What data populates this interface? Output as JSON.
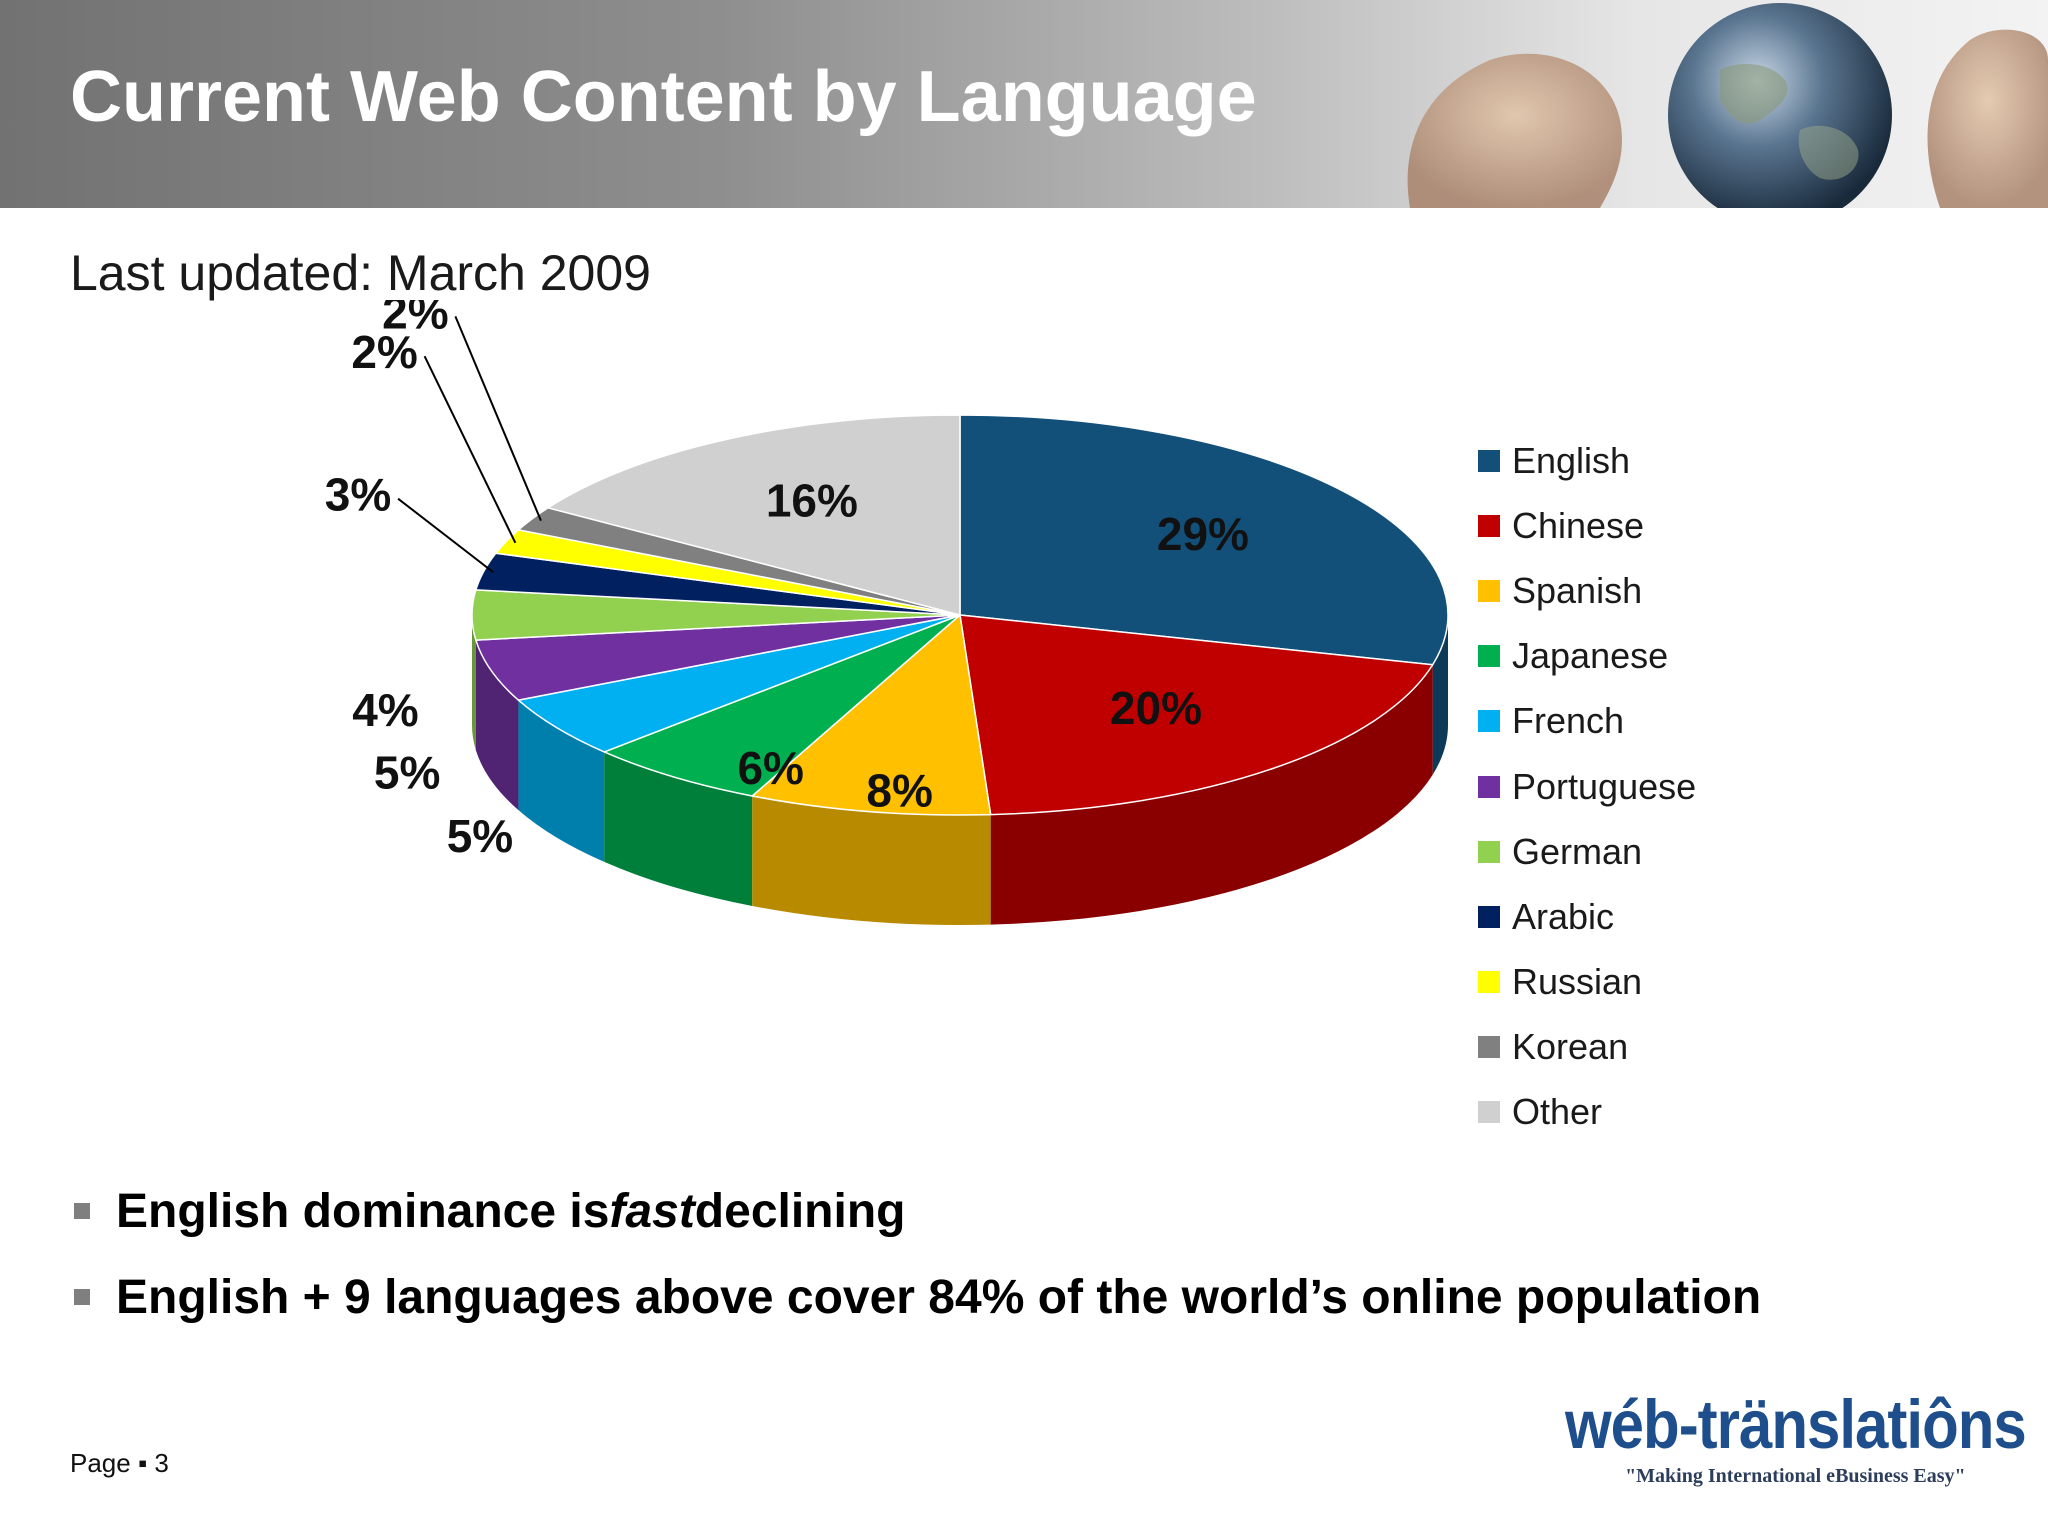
{
  "header": {
    "title": "Current Web Content by Language"
  },
  "subtitle": "Last updated: March 2009",
  "chart_data": {
    "type": "pie",
    "title": "",
    "categories": [
      "English",
      "Chinese",
      "Spanish",
      "Japanese",
      "French",
      "Portuguese",
      "German",
      "Arabic",
      "Russian",
      "Korean",
      "Other"
    ],
    "values": [
      29,
      20,
      8,
      6,
      5,
      5,
      4,
      3,
      2,
      2,
      16
    ],
    "labels": [
      "29%",
      "20%",
      "8%",
      "6%",
      "5%",
      "5%",
      "4%",
      "3%",
      "2%",
      "2%",
      "16%"
    ],
    "colors": [
      "#12507a",
      "#c00000",
      "#ffc000",
      "#00b050",
      "#00b0f0",
      "#7030a0",
      "#92d050",
      "#002060",
      "#ffff00",
      "#808080",
      "#d0d0d0"
    ],
    "legend_placement": "right",
    "style": "3d"
  },
  "bullets": [
    {
      "pre": "English dominance is ",
      "em": "fast",
      "post": " declining"
    },
    {
      "pre": "English + 9 languages above cover 84% of the world’s online population",
      "em": "",
      "post": ""
    }
  ],
  "footer": {
    "page_label": "Page",
    "separator": "▪",
    "page_number": "3"
  },
  "logo": {
    "text": "wéb-tränslatiôns",
    "tagline": "\"Making International eBusiness Easy\""
  }
}
